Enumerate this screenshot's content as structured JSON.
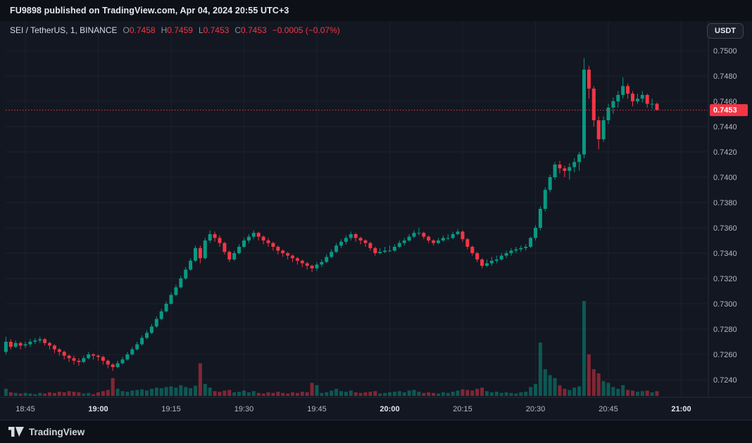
{
  "top_bar": {
    "text": "FU9898 published on TradingView.com, Apr 04, 2024 20:55 UTC+3"
  },
  "header": {
    "symbol": "SEI / TetherUS, 1, BINANCE",
    "o_label": "O",
    "o_value": "0.7458",
    "h_label": "H",
    "h_value": "0.7459",
    "l_label": "L",
    "l_value": "0.7453",
    "c_label": "C",
    "c_value": "0.7453",
    "change": "−0.0005 (−0.07%)",
    "currency_button": "USDT"
  },
  "footer": {
    "brand": "TradingView"
  },
  "chart_data": {
    "type": "candlestick",
    "title": "SEI / TetherUS, 1, BINANCE",
    "pair": "SEI / TetherUS",
    "interval": "1",
    "exchange": "BINANCE",
    "last": {
      "open": 0.7458,
      "high": 0.7459,
      "low": 0.7453,
      "close": 0.7453,
      "change": -0.0005,
      "change_pct": -0.07
    },
    "last_price": 0.7453,
    "last_price_label": "0.7453",
    "y_ticks": [
      "0.7500",
      "0.7480",
      "0.7460",
      "0.7440",
      "0.7420",
      "0.7400",
      "0.7380",
      "0.7360",
      "0.7340",
      "0.7320",
      "0.7300",
      "0.7280",
      "0.7260",
      "0.7240"
    ],
    "y_range": [
      0.724,
      0.75
    ],
    "x_ticks": [
      "18:45",
      "19:00",
      "19:15",
      "19:30",
      "19:45",
      "20:00",
      "20:15",
      "20:30",
      "20:45",
      "21:00"
    ],
    "start_time": "18:41",
    "interval_minutes": 1,
    "grid": true,
    "up_color": "#089981",
    "down_color": "#f23645",
    "candles": [
      [
        0.7262,
        0.7274,
        0.726,
        0.727,
        12
      ],
      [
        0.727,
        0.7272,
        0.7264,
        0.7266,
        6
      ],
      [
        0.7266,
        0.7271,
        0.7265,
        0.7269,
        5
      ],
      [
        0.7269,
        0.727,
        0.7264,
        0.7267,
        4
      ],
      [
        0.7267,
        0.727,
        0.7265,
        0.7268,
        5
      ],
      [
        0.7268,
        0.7272,
        0.7266,
        0.727,
        4
      ],
      [
        0.727,
        0.7273,
        0.7268,
        0.7271,
        3
      ],
      [
        0.7271,
        0.7274,
        0.7269,
        0.7272,
        5
      ],
      [
        0.7272,
        0.7273,
        0.7267,
        0.7269,
        4
      ],
      [
        0.7269,
        0.727,
        0.7264,
        0.7267,
        6
      ],
      [
        0.7267,
        0.7268,
        0.7261,
        0.7264,
        5
      ],
      [
        0.7264,
        0.7265,
        0.7259,
        0.7262,
        7
      ],
      [
        0.7262,
        0.7263,
        0.7256,
        0.7259,
        6
      ],
      [
        0.7259,
        0.726,
        0.7254,
        0.7257,
        8
      ],
      [
        0.7257,
        0.7259,
        0.7252,
        0.7255,
        7
      ],
      [
        0.7255,
        0.7257,
        0.7251,
        0.7254,
        6
      ],
      [
        0.7254,
        0.7259,
        0.7253,
        0.7257,
        4
      ],
      [
        0.7257,
        0.7262,
        0.7256,
        0.726,
        5
      ],
      [
        0.726,
        0.7261,
        0.7256,
        0.7259,
        3
      ],
      [
        0.7259,
        0.726,
        0.7255,
        0.7258,
        6
      ],
      [
        0.7258,
        0.7259,
        0.7252,
        0.7255,
        8
      ],
      [
        0.7255,
        0.7256,
        0.7249,
        0.7252,
        10
      ],
      [
        0.7252,
        0.7253,
        0.7247,
        0.725,
        30
      ],
      [
        0.725,
        0.7255,
        0.7249,
        0.7253,
        12
      ],
      [
        0.7253,
        0.7258,
        0.7252,
        0.7256,
        8
      ],
      [
        0.7256,
        0.7262,
        0.7255,
        0.726,
        7
      ],
      [
        0.726,
        0.7266,
        0.7259,
        0.7264,
        9
      ],
      [
        0.7264,
        0.727,
        0.7263,
        0.7268,
        10
      ],
      [
        0.7268,
        0.7275,
        0.7267,
        0.7273,
        11
      ],
      [
        0.7273,
        0.7279,
        0.7272,
        0.7277,
        9
      ],
      [
        0.7277,
        0.7284,
        0.7276,
        0.7282,
        12
      ],
      [
        0.7282,
        0.729,
        0.7281,
        0.7288,
        14
      ],
      [
        0.7288,
        0.7296,
        0.7287,
        0.7294,
        13
      ],
      [
        0.7294,
        0.7302,
        0.7293,
        0.73,
        15
      ],
      [
        0.73,
        0.7309,
        0.7299,
        0.7307,
        16
      ],
      [
        0.7307,
        0.7315,
        0.7306,
        0.7313,
        14
      ],
      [
        0.7313,
        0.7322,
        0.7312,
        0.732,
        18
      ],
      [
        0.732,
        0.7329,
        0.7319,
        0.7327,
        15
      ],
      [
        0.7327,
        0.7336,
        0.7326,
        0.7334,
        13
      ],
      [
        0.7334,
        0.7346,
        0.7333,
        0.7344,
        17
      ],
      [
        0.7344,
        0.7346,
        0.7332,
        0.7336,
        55
      ],
      [
        0.7336,
        0.7352,
        0.7335,
        0.735,
        20
      ],
      [
        0.735,
        0.7358,
        0.7348,
        0.7355,
        14
      ],
      [
        0.7355,
        0.7357,
        0.7349,
        0.7352,
        8
      ],
      [
        0.7352,
        0.7354,
        0.7345,
        0.7348,
        7
      ],
      [
        0.7348,
        0.7349,
        0.7339,
        0.7341,
        9
      ],
      [
        0.7341,
        0.7342,
        0.7333,
        0.7335,
        10
      ],
      [
        0.7335,
        0.7342,
        0.7334,
        0.734,
        6
      ],
      [
        0.734,
        0.7347,
        0.7339,
        0.7345,
        7
      ],
      [
        0.7345,
        0.7352,
        0.7344,
        0.735,
        9
      ],
      [
        0.735,
        0.7355,
        0.7348,
        0.7353,
        6
      ],
      [
        0.7353,
        0.7358,
        0.7351,
        0.7356,
        8
      ],
      [
        0.7356,
        0.7357,
        0.735,
        0.7353,
        5
      ],
      [
        0.7353,
        0.7354,
        0.7347,
        0.735,
        4
      ],
      [
        0.735,
        0.7352,
        0.7345,
        0.7348,
        6
      ],
      [
        0.7348,
        0.7349,
        0.7342,
        0.7345,
        5
      ],
      [
        0.7345,
        0.7346,
        0.7339,
        0.7342,
        7
      ],
      [
        0.7342,
        0.7343,
        0.7337,
        0.734,
        5
      ],
      [
        0.734,
        0.7341,
        0.7335,
        0.7338,
        4
      ],
      [
        0.7338,
        0.7339,
        0.7333,
        0.7336,
        6
      ],
      [
        0.7336,
        0.7337,
        0.7331,
        0.7334,
        5
      ],
      [
        0.7334,
        0.7335,
        0.7329,
        0.7332,
        7
      ],
      [
        0.7332,
        0.7333,
        0.7327,
        0.733,
        6
      ],
      [
        0.733,
        0.7331,
        0.7325,
        0.7328,
        22
      ],
      [
        0.7328,
        0.7333,
        0.7326,
        0.7331,
        18
      ],
      [
        0.7331,
        0.7335,
        0.7329,
        0.7333,
        5
      ],
      [
        0.7333,
        0.7339,
        0.7332,
        0.7337,
        6
      ],
      [
        0.7337,
        0.7343,
        0.7336,
        0.7341,
        9
      ],
      [
        0.7341,
        0.7348,
        0.734,
        0.7346,
        12
      ],
      [
        0.7346,
        0.7351,
        0.7344,
        0.7349,
        8
      ],
      [
        0.7349,
        0.7354,
        0.7347,
        0.7352,
        7
      ],
      [
        0.7352,
        0.7357,
        0.735,
        0.7355,
        9
      ],
      [
        0.7355,
        0.7356,
        0.7349,
        0.7352,
        6
      ],
      [
        0.7352,
        0.7353,
        0.7347,
        0.735,
        5
      ],
      [
        0.735,
        0.7351,
        0.7345,
        0.7348,
        6
      ],
      [
        0.7348,
        0.7349,
        0.7342,
        0.7344,
        7
      ],
      [
        0.7344,
        0.7345,
        0.7338,
        0.734,
        8
      ],
      [
        0.734,
        0.7344,
        0.7339,
        0.7341,
        4
      ],
      [
        0.7341,
        0.7345,
        0.734,
        0.7342,
        5
      ],
      [
        0.7342,
        0.7346,
        0.7341,
        0.7342,
        6
      ],
      [
        0.7342,
        0.7347,
        0.7341,
        0.7345,
        7
      ],
      [
        0.7345,
        0.735,
        0.7344,
        0.7348,
        8
      ],
      [
        0.7348,
        0.7352,
        0.7346,
        0.735,
        6
      ],
      [
        0.735,
        0.7355,
        0.7349,
        0.7353,
        9
      ],
      [
        0.7353,
        0.7358,
        0.7352,
        0.7356,
        10
      ],
      [
        0.7356,
        0.736,
        0.7354,
        0.7356,
        7
      ],
      [
        0.7356,
        0.7357,
        0.7351,
        0.7353,
        5
      ],
      [
        0.7353,
        0.7354,
        0.7348,
        0.735,
        6
      ],
      [
        0.735,
        0.7351,
        0.7346,
        0.7348,
        5
      ],
      [
        0.7348,
        0.7352,
        0.7347,
        0.735,
        4
      ],
      [
        0.735,
        0.7354,
        0.7349,
        0.7352,
        6
      ],
      [
        0.7352,
        0.7355,
        0.735,
        0.7352,
        5
      ],
      [
        0.7352,
        0.7357,
        0.7351,
        0.7355,
        7
      ],
      [
        0.7355,
        0.7359,
        0.7354,
        0.7357,
        9
      ],
      [
        0.7357,
        0.7358,
        0.7349,
        0.7351,
        11
      ],
      [
        0.7351,
        0.7352,
        0.7343,
        0.7345,
        10
      ],
      [
        0.7345,
        0.7346,
        0.7338,
        0.734,
        9
      ],
      [
        0.734,
        0.7341,
        0.7333,
        0.7335,
        12
      ],
      [
        0.7335,
        0.7336,
        0.7328,
        0.733,
        14
      ],
      [
        0.733,
        0.7335,
        0.7329,
        0.7332,
        8
      ],
      [
        0.7332,
        0.7337,
        0.733,
        0.7334,
        6
      ],
      [
        0.7334,
        0.7338,
        0.7332,
        0.7335,
        7
      ],
      [
        0.7335,
        0.734,
        0.7334,
        0.7338,
        5
      ],
      [
        0.7338,
        0.7342,
        0.7336,
        0.734,
        6
      ],
      [
        0.734,
        0.7344,
        0.7338,
        0.7342,
        5
      ],
      [
        0.7342,
        0.7345,
        0.734,
        0.7343,
        4
      ],
      [
        0.7343,
        0.7346,
        0.7341,
        0.7344,
        6
      ],
      [
        0.7344,
        0.7347,
        0.7342,
        0.7345,
        7
      ],
      [
        0.7345,
        0.7353,
        0.7344,
        0.7352,
        15
      ],
      [
        0.7352,
        0.7362,
        0.735,
        0.736,
        20
      ],
      [
        0.736,
        0.7377,
        0.7358,
        0.7375,
        90
      ],
      [
        0.7375,
        0.7392,
        0.7373,
        0.739,
        45
      ],
      [
        0.739,
        0.7402,
        0.7388,
        0.74,
        35
      ],
      [
        0.74,
        0.7412,
        0.7398,
        0.741,
        30
      ],
      [
        0.741,
        0.7413,
        0.7403,
        0.7407,
        18
      ],
      [
        0.7407,
        0.7409,
        0.74,
        0.7405,
        12
      ],
      [
        0.7405,
        0.7411,
        0.7398,
        0.7408,
        10
      ],
      [
        0.7408,
        0.7415,
        0.7404,
        0.7412,
        14
      ],
      [
        0.7412,
        0.742,
        0.7405,
        0.7418,
        16
      ],
      [
        0.7418,
        0.7494,
        0.7415,
        0.7485,
        160
      ],
      [
        0.7485,
        0.7488,
        0.7462,
        0.747,
        70
      ],
      [
        0.747,
        0.7472,
        0.744,
        0.7445,
        45
      ],
      [
        0.7445,
        0.7448,
        0.7422,
        0.743,
        38
      ],
      [
        0.743,
        0.7448,
        0.7428,
        0.7445,
        25
      ],
      [
        0.7445,
        0.7458,
        0.7442,
        0.7455,
        22
      ],
      [
        0.7455,
        0.7463,
        0.745,
        0.746,
        15
      ],
      [
        0.746,
        0.7468,
        0.7455,
        0.7465,
        12
      ],
      [
        0.7465,
        0.7479,
        0.7462,
        0.7472,
        18
      ],
      [
        0.7472,
        0.7474,
        0.7462,
        0.7466,
        10
      ],
      [
        0.7466,
        0.7468,
        0.7456,
        0.746,
        9
      ],
      [
        0.746,
        0.7466,
        0.7458,
        0.7462,
        7
      ],
      [
        0.7462,
        0.7468,
        0.7459,
        0.7465,
        8
      ],
      [
        0.7465,
        0.7466,
        0.7455,
        0.7458,
        9
      ],
      [
        0.7458,
        0.7462,
        0.7454,
        0.7458,
        6
      ],
      [
        0.7458,
        0.7459,
        0.7453,
        0.7453,
        8
      ]
    ]
  }
}
